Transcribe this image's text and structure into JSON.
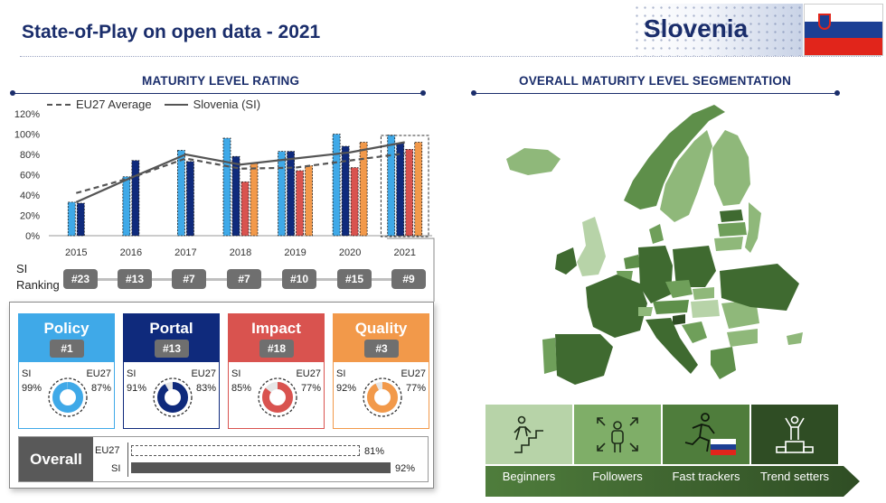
{
  "header": {
    "title": "State-of-Play on open data - 2021",
    "country": "Slovenia"
  },
  "left_section": {
    "title": "MATURITY LEVEL RATING"
  },
  "right_section": {
    "title": "OVERALL MATURITY LEVEL SEGMENTATION"
  },
  "colors": {
    "navy": "#1a2d6b",
    "policy": "#3fa9e8",
    "portal": "#0f2a7c",
    "impact": "#d9534f",
    "quality": "#f2994a",
    "badge": "#6f6f6f",
    "beginners": "#b7d3a8",
    "followers": "#7fae68",
    "fast_trackers": "#4f7d3c",
    "trend_setters": "#2f4d24"
  },
  "chart_data": {
    "type": "bar",
    "categories": [
      "2015",
      "2016",
      "2017",
      "2018",
      "2019",
      "2020",
      "2021"
    ],
    "ylim": [
      0,
      120
    ],
    "yticks": [
      "0%",
      "20%",
      "40%",
      "60%",
      "80%",
      "100%",
      "120%"
    ],
    "series": [
      {
        "values": [
          33,
          58,
          84,
          96,
          83,
          100,
          99
        ]
      },
      {
        "values": [
          32,
          74,
          73,
          78,
          83,
          88,
          91
        ]
      },
      {
        "values": [
          null,
          null,
          null,
          53,
          64,
          67,
          85
        ]
      },
      {
        "values": [
          null,
          null,
          null,
          71,
          69,
          92,
          92
        ]
      }
    ],
    "lines": [
      {
        "name": "EU27 Average",
        "style": "dashed",
        "values": [
          42,
          57,
          76,
          66,
          67,
          74,
          81
        ]
      },
      {
        "name": "Slovenia (SI)",
        "style": "solid",
        "values": [
          33,
          57,
          80,
          70,
          76,
          82,
          92
        ]
      }
    ],
    "legend_position": "top-left",
    "grid": false
  },
  "ranking": {
    "label_line1": "SI",
    "label_line2": "Ranking",
    "items": [
      "#23",
      "#13",
      "#7",
      "#7",
      "#10",
      "#15",
      "#9"
    ]
  },
  "cards": [
    {
      "name": "Policy",
      "rank": "#1",
      "si_label": "SI",
      "eu_label": "EU27",
      "si_value": "99%",
      "eu_value": "87%",
      "si": 99,
      "eu": 87,
      "color": "#3fa9e8"
    },
    {
      "name": "Portal",
      "rank": "#13",
      "si_label": "SI",
      "eu_label": "EU27",
      "si_value": "91%",
      "eu_value": "83%",
      "si": 91,
      "eu": 83,
      "color": "#0f2a7c"
    },
    {
      "name": "Impact",
      "rank": "#18",
      "si_label": "SI",
      "eu_label": "EU27",
      "si_value": "85%",
      "eu_value": "77%",
      "si": 85,
      "eu": 77,
      "color": "#d9534f"
    },
    {
      "name": "Quality",
      "rank": "#3",
      "si_label": "SI",
      "eu_label": "EU27",
      "si_value": "92%",
      "eu_value": "77%",
      "si": 92,
      "eu": 77,
      "color": "#f2994a"
    }
  ],
  "overall": {
    "label": "Overall",
    "eu_label": "EU27",
    "si_label": "SI",
    "eu_value": "81%",
    "si_value": "92%",
    "eu": 81,
    "si": 92
  },
  "segments": [
    {
      "label": "Beginners",
      "icon": "stairs-climber-icon"
    },
    {
      "label": "Followers",
      "icon": "person-arrows-icon"
    },
    {
      "label": "Fast trackers",
      "icon": "runner-icon"
    },
    {
      "label": "Trend setters",
      "icon": "podium-winner-icon"
    }
  ]
}
